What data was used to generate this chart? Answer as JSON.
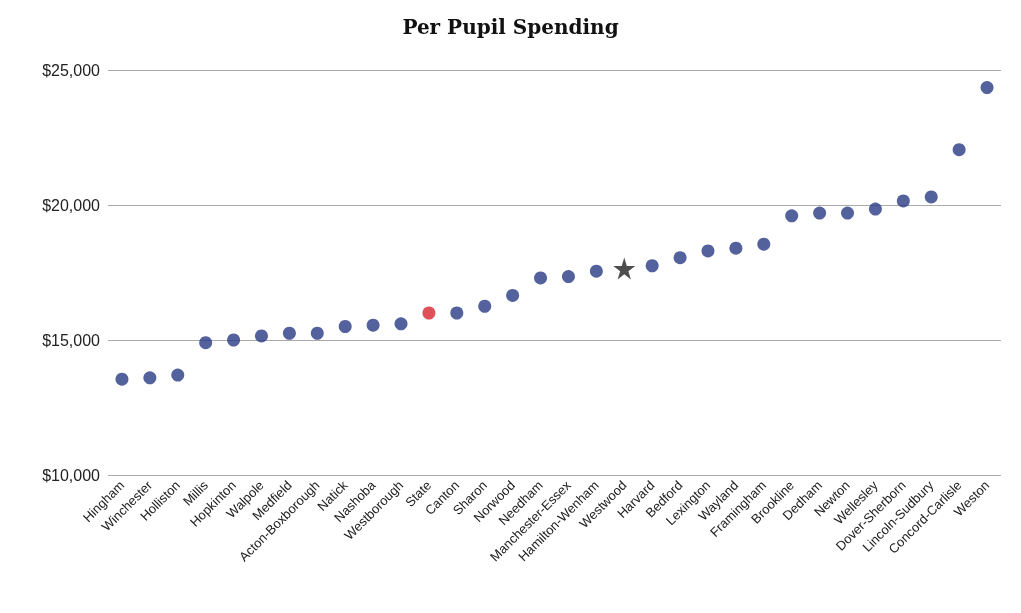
{
  "chart_data": {
    "type": "scatter",
    "title": "Per Pupil Spending",
    "categories": [
      "Hingham",
      "Winchester",
      "Holliston",
      "Millis",
      "Hopkinton",
      "Walpole",
      "Medfield",
      "Acton-Boxborough",
      "Natick",
      "Nashoba",
      "Westborough",
      "State",
      "Canton",
      "Sharon",
      "Norwood",
      "Needham",
      "Manchester-Essex",
      "Hamilton-Wenham",
      "Westwood",
      "Harvard",
      "Bedford",
      "Lexington",
      "Wayland",
      "Framingham",
      "Brookline",
      "Dedham",
      "Newton",
      "Wellesley",
      "Dover-Sherborn",
      "Lincoln-Sudbury",
      "Concord-Carlisle",
      "Weston"
    ],
    "series": [
      {
        "color": "#283a85",
        "marker": "circle",
        "x": [
          "Hingham",
          "Winchester",
          "Holliston",
          "Millis",
          "Hopkinton",
          "Walpole",
          "Medfield",
          "Acton-Boxborough",
          "Natick",
          "Nashoba",
          "Westborough",
          "Canton",
          "Sharon",
          "Norwood",
          "Needham",
          "Manchester-Essex",
          "Hamilton-Wenham",
          "Harvard",
          "Bedford",
          "Lexington",
          "Wayland",
          "Framingham",
          "Brookline",
          "Dedham",
          "Newton",
          "Wellesley",
          "Dover-Sherborn",
          "Lincoln-Sudbury",
          "Concord-Carlisle",
          "Weston"
        ],
        "values": [
          13550,
          13600,
          13700,
          14900,
          15000,
          15150,
          15250,
          15250,
          15500,
          15550,
          15600,
          16000,
          16250,
          16650,
          17300,
          17350,
          17550,
          17750,
          18050,
          18300,
          18400,
          18550,
          19600,
          19700,
          19700,
          19850,
          20150,
          20300,
          22050,
          24350
        ]
      },
      {
        "color": "#d7262e",
        "marker": "circle",
        "x": [
          "State"
        ],
        "values": [
          16000
        ]
      },
      {
        "color": "#222222",
        "marker": "star",
        "x": [
          "Westwood"
        ],
        "values": [
          17650
        ]
      }
    ],
    "ylim": [
      10000,
      25000
    ],
    "yticks": [
      {
        "value": 10000,
        "label": "$10,000"
      },
      {
        "value": 15000,
        "label": "$15,000"
      },
      {
        "value": 20000,
        "label": "$20,000"
      },
      {
        "value": 25000,
        "label": "$25,000"
      }
    ],
    "grid": "y"
  }
}
